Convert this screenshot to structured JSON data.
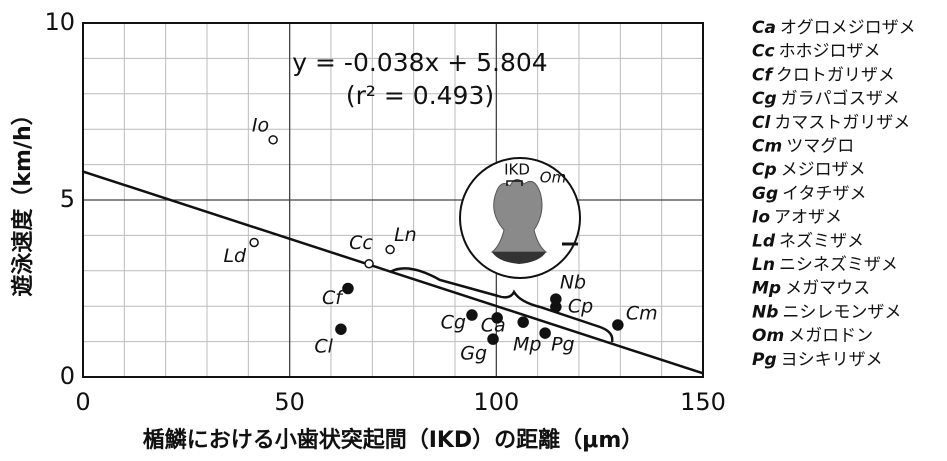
{
  "chart_data": {
    "type": "scatter",
    "x_label": "楯鱗における小歯状突起間（IKD）の距離（μm）",
    "y_label": "遊泳速度（km/h）",
    "xlim": [
      0,
      150
    ],
    "ylim": [
      0,
      10
    ],
    "xticks": [
      0,
      50,
      100,
      150
    ],
    "yticks": [
      0,
      5,
      10
    ],
    "x_minor_grid": [
      10,
      20,
      30,
      40,
      60,
      70,
      80,
      90,
      110,
      120,
      130,
      140
    ],
    "y_minor_grid": [
      1,
      2,
      3,
      4,
      6,
      7,
      8,
      9
    ],
    "grid": true,
    "color": "#111111",
    "equation": "y = -0.038x + 5.804",
    "r_squared": "(r² = 0.493)",
    "regression": {
      "slope": -0.038,
      "intercept": 5.804
    },
    "points": [
      {
        "label": "Io",
        "x": 46,
        "y": 6.7,
        "filled": false
      },
      {
        "label": "Ld",
        "x": 41.4,
        "y": 3.8,
        "filled": false
      },
      {
        "label": "Cc",
        "x": 69.2,
        "y": 3.2,
        "filled": false
      },
      {
        "label": "Ln",
        "x": 74.3,
        "y": 3.6,
        "filled": false
      },
      {
        "label": "Cf",
        "x": 64.1,
        "y": 2.5,
        "filled": true
      },
      {
        "label": "Cl",
        "x": 62.4,
        "y": 1.35,
        "filled": true
      },
      {
        "label": "Cg",
        "x": 94.1,
        "y": 1.75,
        "filled": true
      },
      {
        "label": "Ca",
        "x": 100.2,
        "y": 1.67,
        "filled": true
      },
      {
        "label": "Gg",
        "x": 99.2,
        "y": 1.07,
        "filled": true
      },
      {
        "label": "Mp",
        "x": 106.5,
        "y": 1.55,
        "filled": true
      },
      {
        "label": "Pg",
        "x": 111.8,
        "y": 1.24,
        "filled": true
      },
      {
        "label": "Nb",
        "x": 114.4,
        "y": 2.2,
        "filled": true
      },
      {
        "label": "Cp",
        "x": 114.4,
        "y": 1.98,
        "filled": true
      },
      {
        "label": "Cm",
        "x": 129.4,
        "y": 1.47,
        "filled": true
      }
    ],
    "inset": {
      "ikd_label": "IKD",
      "species_label": "Om"
    },
    "legend": [
      {
        "abbr": "Ca",
        "name": "オグロメジロザメ"
      },
      {
        "abbr": "Cc",
        "name": "ホホジロザメ"
      },
      {
        "abbr": "Cf",
        "name": "クロトガリザメ"
      },
      {
        "abbr": "Cg",
        "name": "ガラパゴスザメ"
      },
      {
        "abbr": "Cl",
        "name": "カマストガリザメ"
      },
      {
        "abbr": "Cm",
        "name": "ツマグロ"
      },
      {
        "abbr": "Cp",
        "name": "メジロザメ"
      },
      {
        "abbr": "Gg",
        "name": "イタチザメ"
      },
      {
        "abbr": "Io",
        "name": "アオザメ"
      },
      {
        "abbr": "Ld",
        "name": "ネズミザメ"
      },
      {
        "abbr": "Ln",
        "name": "ニシネズミザメ"
      },
      {
        "abbr": "Mp",
        "name": "メガマウス"
      },
      {
        "abbr": "Nb",
        "name": "ニシレモンザメ"
      },
      {
        "abbr": "Om",
        "name": "メガロドン"
      },
      {
        "abbr": "Pg",
        "name": "ヨシキリザメ"
      }
    ]
  }
}
